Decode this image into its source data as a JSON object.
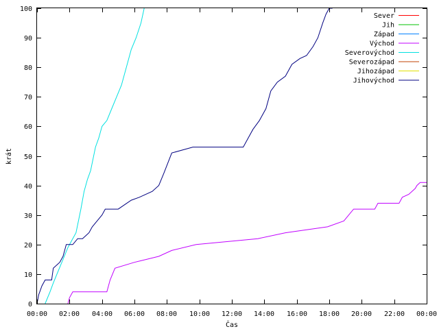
{
  "chart_data": {
    "type": "line",
    "title": "",
    "xlabel": "Čas",
    "ylabel": "krát",
    "xlim": [
      0,
      24
    ],
    "ylim": [
      0,
      100
    ],
    "x_ticks": [
      0,
      2,
      4,
      6,
      8,
      10,
      12,
      14,
      16,
      18,
      20,
      22,
      24
    ],
    "x_tick_labels": [
      "00:00",
      "02:00",
      "04:00",
      "06:00",
      "08:00",
      "10:00",
      "12:00",
      "14:00",
      "16:00",
      "18:00",
      "20:00",
      "22:00",
      "00:00"
    ],
    "y_ticks": [
      0,
      10,
      20,
      30,
      40,
      50,
      60,
      70,
      80,
      90,
      100
    ],
    "y_tick_labels": [
      "0",
      "10",
      "20",
      "30",
      "40",
      "50",
      "60",
      "70",
      "80",
      "90",
      "100"
    ],
    "grid": false,
    "legend_position": "top-right",
    "series": [
      {
        "name": "Sever",
        "color": "#ff0000",
        "x": [],
        "y": []
      },
      {
        "name": "Jih",
        "color": "#00c000",
        "x": [],
        "y": []
      },
      {
        "name": "Západ",
        "color": "#0080ff",
        "x": [],
        "y": []
      },
      {
        "name": "Východ",
        "color": "#c000ff",
        "x": [
          1.9,
          2.0,
          2.2,
          4.3,
          4.5,
          4.8,
          6.0,
          7.5,
          8.3,
          9.8,
          13.6,
          15.3,
          17.9,
          18.9,
          19.2,
          19.5,
          20.8,
          21.0,
          22.3,
          22.5,
          22.9,
          23.3,
          23.4,
          23.6,
          24.0
        ],
        "y": [
          0,
          2,
          4,
          4,
          8,
          12,
          14,
          16,
          18,
          20,
          22,
          24,
          26,
          28,
          30,
          32,
          32,
          34,
          34,
          36,
          37,
          39,
          40,
          41,
          41
        ]
      },
      {
        "name": "Severovýchod",
        "color": "#00e0e0",
        "x": [
          0.5,
          0.8,
          1.0,
          1.3,
          1.6,
          1.9,
          2.1,
          2.4,
          2.7,
          2.9,
          3.1,
          3.3,
          3.6,
          3.8,
          4.0,
          4.3,
          4.6,
          4.9,
          5.2,
          5.5,
          5.8,
          6.1,
          6.4,
          6.6
        ],
        "y": [
          0,
          4,
          7,
          11,
          15,
          19,
          21,
          24,
          32,
          38,
          42,
          45,
          53,
          56,
          60,
          62,
          66,
          70,
          74,
          80,
          86,
          90,
          95,
          100
        ]
      },
      {
        "name": "Severozápad",
        "color": "#c04000",
        "x": [],
        "y": []
      },
      {
        "name": "Jihozápad",
        "color": "#e0e000",
        "x": [],
        "y": []
      },
      {
        "name": "Jihovýchod",
        "color": "#000080",
        "x": [
          0.0,
          0.1,
          0.3,
          0.5,
          0.9,
          1.0,
          1.4,
          1.6,
          1.8,
          2.2,
          2.5,
          2.8,
          3.2,
          3.4,
          3.7,
          4.0,
          4.2,
          5.0,
          5.8,
          6.3,
          7.1,
          7.5,
          7.8,
          8.3,
          9.6,
          12.7,
          13.0,
          13.3,
          13.7,
          14.1,
          14.4,
          14.8,
          15.3,
          15.7,
          16.2,
          16.6,
          17.0,
          17.3,
          17.6,
          17.8,
          18.0,
          18.2
        ],
        "y": [
          0,
          3,
          6,
          8,
          8,
          12,
          14,
          16,
          20,
          20,
          22,
          22,
          24,
          26,
          28,
          30,
          32,
          32,
          35,
          36,
          38,
          40,
          44,
          51,
          53,
          53,
          56,
          59,
          62,
          66,
          72,
          75,
          77,
          81,
          83,
          84,
          87,
          90,
          95,
          98,
          100,
          100
        ]
      }
    ]
  }
}
